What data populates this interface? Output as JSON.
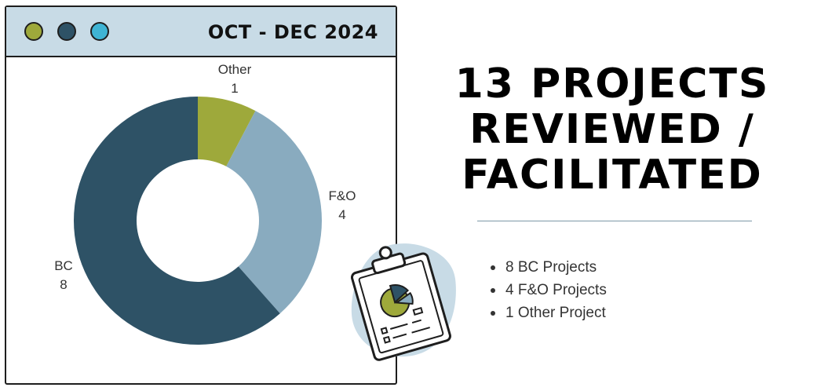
{
  "window": {
    "title": "OCT - DEC 2024",
    "dots": [
      {
        "name": "olive",
        "color": "#9ea93b"
      },
      {
        "name": "navy",
        "color": "#2e5266"
      },
      {
        "name": "cyan",
        "color": "#3fb4d4"
      }
    ]
  },
  "chart_data": {
    "type": "pie",
    "donut": true,
    "categories": [
      "Other",
      "F&O",
      "BC"
    ],
    "values": [
      1,
      4,
      8
    ],
    "colors": [
      "#9ea93b",
      "#89abbf",
      "#2e5266"
    ],
    "labels": [
      {
        "name": "Other",
        "value": "1"
      },
      {
        "name": "F&O",
        "value": "4"
      },
      {
        "name": "BC",
        "value": "8"
      }
    ]
  },
  "headline": {
    "lines": [
      "13 PROJECTS",
      "REVIEWED /",
      "FACILITATED"
    ]
  },
  "bullets": [
    "8 BC Projects",
    "4 F&O Projects",
    "1 Other Project"
  ],
  "illustration": {
    "icon": "clipboard-pie-chart-icon",
    "blob_color": "#c8dbe6"
  }
}
